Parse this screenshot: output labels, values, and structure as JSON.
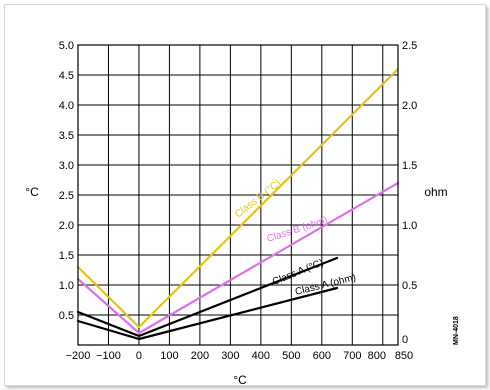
{
  "chart_data": {
    "type": "line",
    "xlabel": "°C",
    "ylabel_left": "°C",
    "ylabel_right": "ohm",
    "x_ticks": [
      -200,
      -100,
      0,
      100,
      200,
      300,
      400,
      500,
      600,
      700,
      800,
      850
    ],
    "x_tick_labels": [
      "−200",
      "−100",
      "0",
      "100",
      "200",
      "300",
      "400",
      "500",
      "600",
      "700",
      "800",
      "850"
    ],
    "y_left_ticks": [
      0.5,
      1.0,
      1.5,
      2.0,
      2.5,
      3.0,
      3.5,
      4.0,
      4.5,
      5.0
    ],
    "y_left_tick_labels": [
      "0.5",
      "1.0",
      "1.5",
      "2.0",
      "2.5",
      "3.0",
      "3.5",
      "4.0",
      "4.5",
      "5.0"
    ],
    "y_right_ticks": [
      0,
      0.5,
      1.0,
      1.5,
      2.0,
      2.5
    ],
    "y_right_tick_labels": [
      "0",
      "0.5",
      "1.0",
      "1.5",
      "2.0",
      "2.5"
    ],
    "xlim": [
      -200,
      850
    ],
    "ylim_left": [
      0,
      5.0
    ],
    "ylim_right": [
      0,
      2.5
    ],
    "grid": true,
    "code_label": "MN-4018",
    "series": [
      {
        "name": "Class B (°C)",
        "color": "#e0c41c",
        "x": [
          -200,
          0,
          850
        ],
        "y": [
          1.3,
          0.3,
          4.6
        ]
      },
      {
        "name": "Class B (ohm)",
        "color": "#e070e8",
        "x": [
          -200,
          0,
          850
        ],
        "y": [
          1.1,
          0.2,
          2.7
        ]
      },
      {
        "name": "Class A (°C)",
        "color": "#000000",
        "x": [
          -200,
          0,
          650
        ],
        "y": [
          0.55,
          0.15,
          1.45
        ]
      },
      {
        "name": "Class A (ohm)",
        "color": "#000000",
        "x": [
          -200,
          0,
          650
        ],
        "y": [
          0.4,
          0.1,
          0.95
        ]
      }
    ],
    "series_labels": [
      "Class B (°C)",
      "Class B (ohm)",
      "Class A (°C)",
      "Class A (ohm)"
    ]
  }
}
